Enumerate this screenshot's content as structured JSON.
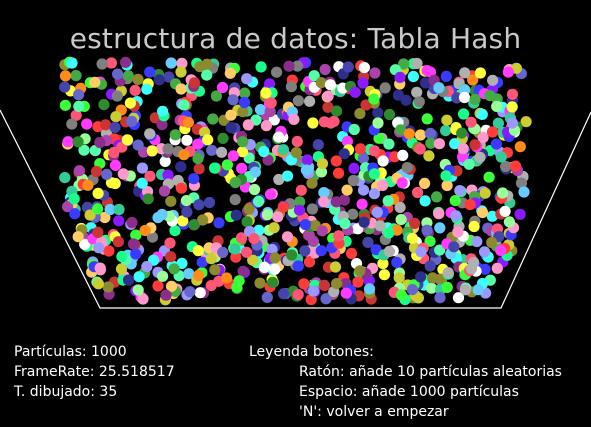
{
  "title": "estructura de datos: Tabla Hash",
  "stats": {
    "particles": "Partículas: 1000",
    "framerate": "FrameRate: 25.518517",
    "draw_time": "T. dibujado: 35"
  },
  "legend": {
    "heading": "Leyenda botones:",
    "items": [
      "Ratón: añade 10 partículas aleatorias",
      "Espacio: añade 1000 partículas",
      "'N': volver a empezar"
    ]
  },
  "particle_count": 1000,
  "palette": [
    "#ff3b3b",
    "#3bff3b",
    "#3b3bff",
    "#ffff3b",
    "#ff3bff",
    "#3bffff",
    "#ff8c1a",
    "#8c1aff",
    "#1aff8c",
    "#7f7f7f",
    "#b0b0b0",
    "#2e8b2e",
    "#8b2e8b",
    "#2e2e8b",
    "#8b8b2e",
    "#ff99cc",
    "#99ff99",
    "#9999ff",
    "#ffcc66",
    "#66ccff",
    "#cc3333",
    "#33cc99",
    "#6666cc",
    "#cccc33",
    "#ffffff",
    "#44aa44",
    "#aa44aa",
    "#4444aa",
    "#55ffaa",
    "#ff5577"
  ]
}
